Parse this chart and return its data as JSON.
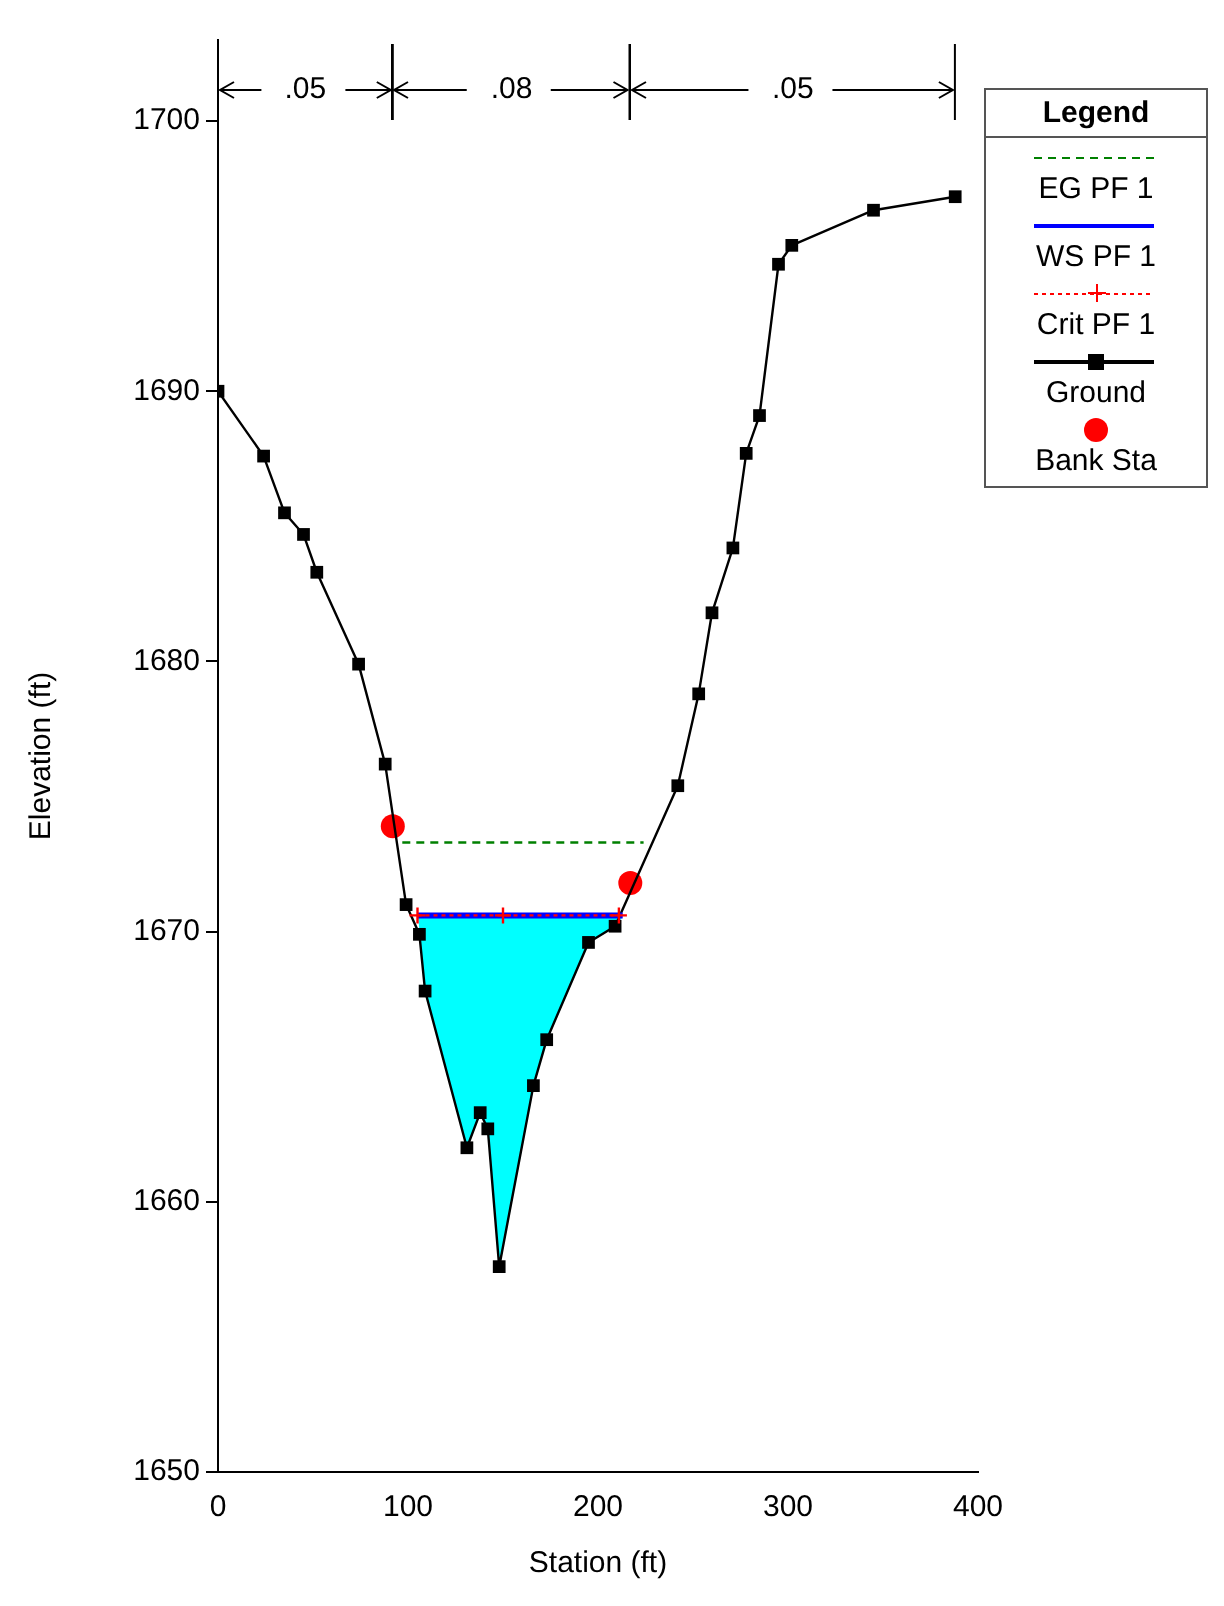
{
  "chart_data": {
    "type": "line",
    "xlabel": "Station (ft)",
    "ylabel": "Elevation (ft)",
    "legend_title": "Legend",
    "legend": "top right",
    "grid": false,
    "xlim": [
      0,
      400
    ],
    "xticks": [
      0,
      100,
      200,
      300,
      400
    ],
    "ylim": [
      1650,
      1703
    ],
    "yticks": [
      1650,
      1660,
      1670,
      1680,
      1690,
      1700
    ],
    "annotations": [
      ".05",
      ".08",
      ".05"
    ],
    "series": [
      {
        "name": "EG PF 1",
        "color": "#008000",
        "line_style": "dashed",
        "marker": "none",
        "x": [
          97,
          224
        ],
        "values": [
          1673.3,
          1673.3
        ]
      },
      {
        "name": "WS PF 1",
        "color": "#0000ff",
        "line_style": "solid",
        "marker": "none",
        "x": [
          105,
          213
        ],
        "values": [
          1670.6,
          1670.6
        ]
      },
      {
        "name": "Crit PF 1",
        "color": "#ff0000",
        "line_style": "dotted",
        "marker": "cross",
        "x": [
          105,
          150,
          211
        ],
        "values": [
          1670.6,
          1670.6,
          1670.6
        ]
      },
      {
        "name": "Ground",
        "color": "#000000",
        "line_style": "solid",
        "marker": "square",
        "x": [
          0,
          24,
          35,
          45,
          52,
          74,
          88,
          99,
          106,
          109,
          131,
          138,
          142,
          148,
          166,
          173,
          195,
          209,
          242,
          253,
          260,
          271,
          278,
          285,
          295,
          302,
          345,
          388
        ],
        "values": [
          1690.0,
          1687.6,
          1685.5,
          1684.7,
          1683.3,
          1679.9,
          1676.2,
          1671.0,
          1669.9,
          1667.8,
          1662.0,
          1663.3,
          1662.7,
          1657.6,
          1664.3,
          1666.0,
          1669.6,
          1670.2,
          1675.4,
          1678.8,
          1681.8,
          1684.2,
          1687.7,
          1689.1,
          1694.7,
          1695.4,
          1696.7,
          1697.2
        ]
      },
      {
        "name": "Bank Sta",
        "type": "scatter",
        "color": "#ff0000",
        "marker": "circle",
        "x": [
          92,
          217
        ],
        "values": [
          1673.9,
          1671.8
        ]
      }
    ]
  }
}
